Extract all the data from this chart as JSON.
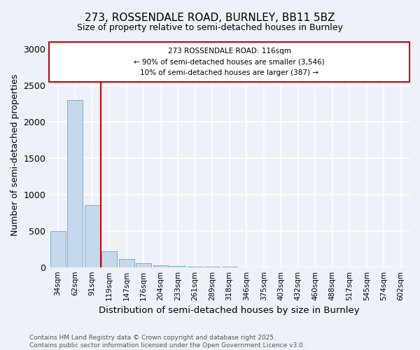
{
  "title_line1": "273, ROSSENDALE ROAD, BURNLEY, BB11 5BZ",
  "title_line2": "Size of property relative to semi-detached houses in Burnley",
  "categories": [
    "34sqm",
    "62sqm",
    "91sqm",
    "119sqm",
    "147sqm",
    "176sqm",
    "204sqm",
    "233sqm",
    "261sqm",
    "289sqm",
    "318sqm",
    "346sqm",
    "375sqm",
    "403sqm",
    "432sqm",
    "460sqm",
    "488sqm",
    "517sqm",
    "545sqm",
    "574sqm",
    "602sqm"
  ],
  "values": [
    500,
    2300,
    850,
    220,
    110,
    50,
    30,
    20,
    10,
    5,
    5,
    0,
    0,
    0,
    0,
    0,
    0,
    0,
    0,
    0,
    0
  ],
  "bar_color": "#c5d9ed",
  "bar_edge_color": "#7aaecf",
  "ylabel": "Number of semi-detached properties",
  "xlabel": "Distribution of semi-detached houses by size in Burnley",
  "ylim": [
    0,
    3100
  ],
  "yticks": [
    0,
    500,
    1000,
    1500,
    2000,
    2500,
    3000
  ],
  "annotation_text_line1": "273 ROSSENDALE ROAD: 116sqm",
  "annotation_text_line2": "← 90% of semi-detached houses are smaller (3,546)",
  "annotation_text_line3": "10% of semi-detached houses are larger (387) →",
  "vline_index": 2.5,
  "vline_color": "#cc0000",
  "footer_line1": "Contains HM Land Registry data © Crown copyright and database right 2025.",
  "footer_line2": "Contains public sector information licensed under the Open Government Licence v3.0.",
  "background_color": "#eef2f8",
  "grid_color": "#ffffff",
  "annotation_box_color": "#ffffff",
  "annotation_box_edge_color": "#cc0000"
}
